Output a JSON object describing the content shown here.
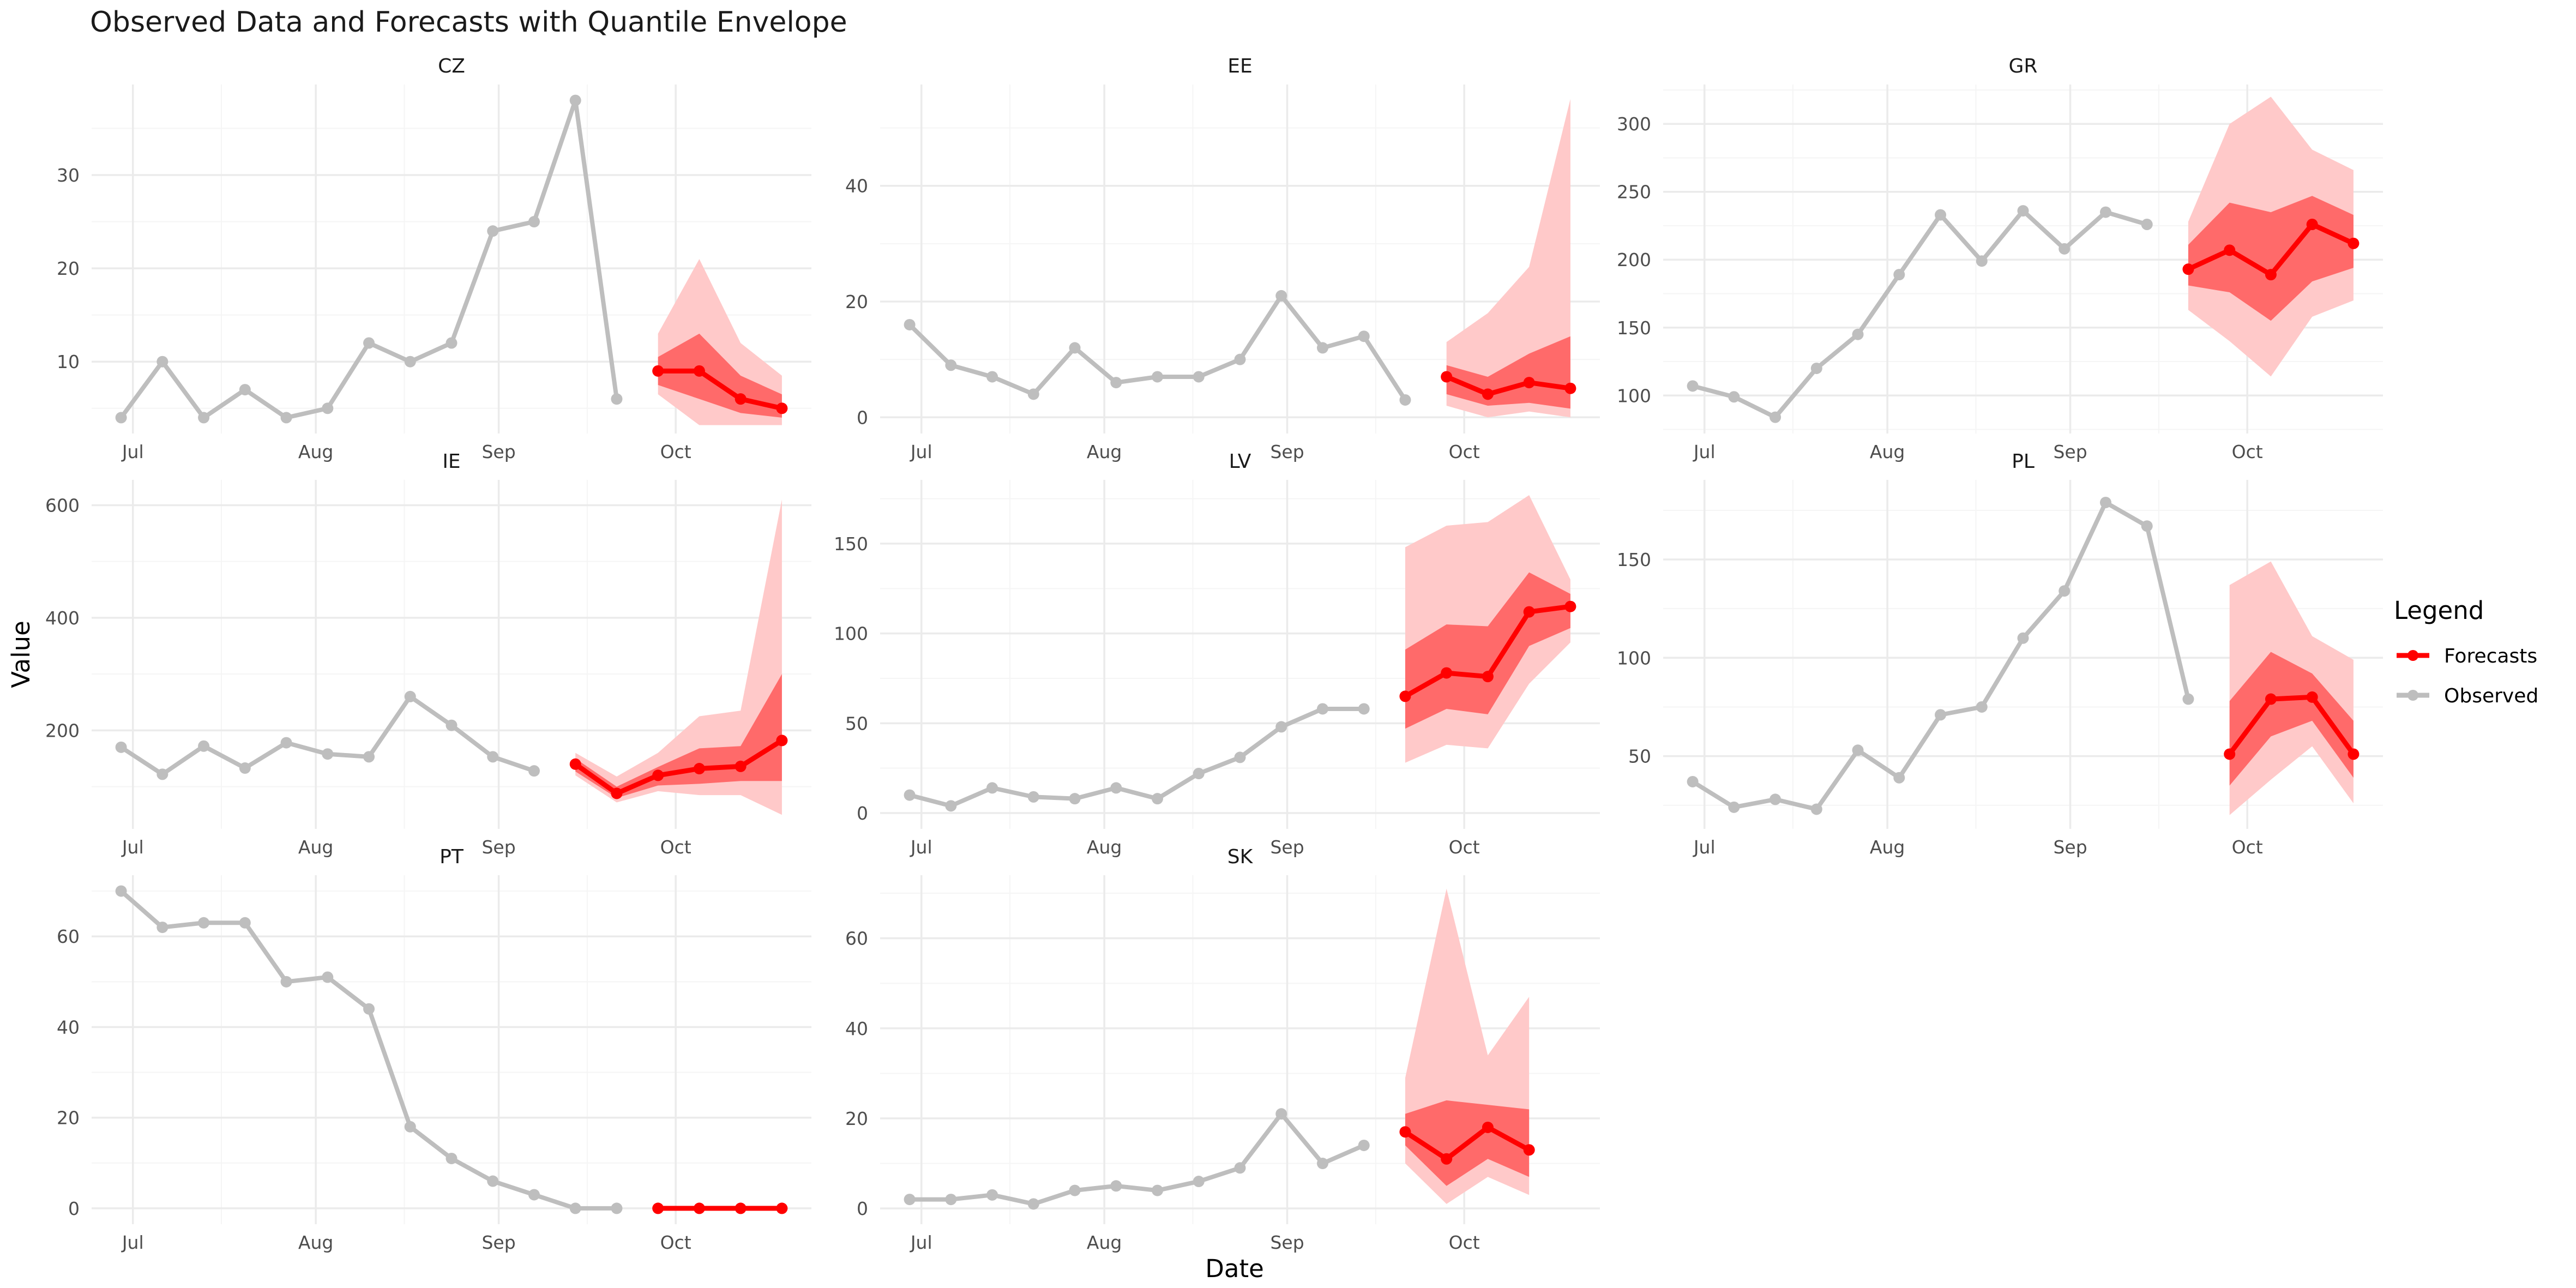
{
  "chart_data": {
    "type": "line",
    "title": "Observed Data and Forecasts with Quantile Envelope",
    "xlabel": "Date",
    "ylabel": "Value",
    "x_ticks": [
      "Jul",
      "Aug",
      "Sep",
      "Oct"
    ],
    "legend": {
      "title": "Legend",
      "placement": "right",
      "entries": [
        {
          "name": "Forecasts",
          "color": "#ff0000"
        },
        {
          "name": "Observed",
          "color": "#bebebe"
        }
      ]
    },
    "colors": {
      "observed": "#bebebe",
      "forecast": "#ff0000",
      "inner_band": "#ff6a6a",
      "outer_band": "#ffc9c9",
      "grid_major": "#ebebeb",
      "grid_minor": "#f5f5f5"
    },
    "grid": true,
    "panels": [
      {
        "name": "CZ",
        "y_ticks": [
          10,
          20,
          30
        ],
        "y_range": [
          2.3,
          39.7
        ],
        "observed": [
          {
            "x": "2024-06-29",
            "y": 4
          },
          {
            "x": "2024-07-06",
            "y": 10
          },
          {
            "x": "2024-07-13",
            "y": 4
          },
          {
            "x": "2024-07-20",
            "y": 7
          },
          {
            "x": "2024-07-27",
            "y": 4
          },
          {
            "x": "2024-08-03",
            "y": 5
          },
          {
            "x": "2024-08-10",
            "y": 12
          },
          {
            "x": "2024-08-17",
            "y": 10
          },
          {
            "x": "2024-08-24",
            "y": 12
          },
          {
            "x": "2024-08-31",
            "y": 24
          },
          {
            "x": "2024-09-07",
            "y": 25
          },
          {
            "x": "2024-09-14",
            "y": 38
          },
          {
            "x": "2024-09-21",
            "y": 6
          }
        ],
        "forecast": [
          {
            "x": "2024-09-28",
            "y": 9,
            "lo50": 7.5,
            "hi50": 10.5,
            "lo90": 6.5,
            "hi90": 13
          },
          {
            "x": "2024-10-05",
            "y": 9,
            "lo50": 6,
            "hi50": 13,
            "lo90": 3.2,
            "hi90": 21
          },
          {
            "x": "2024-10-12",
            "y": 6,
            "lo50": 4.5,
            "hi50": 8.5,
            "lo90": 3.2,
            "hi90": 12
          },
          {
            "x": "2024-10-19",
            "y": 5,
            "lo50": 4,
            "hi50": 6.5,
            "lo90": 3.2,
            "hi90": 8.5
          }
        ]
      },
      {
        "name": "EE",
        "y_ticks": [
          0,
          20,
          40
        ],
        "y_range": [
          -2.8,
          57.5
        ],
        "observed": [
          {
            "x": "2024-06-29",
            "y": 16
          },
          {
            "x": "2024-07-06",
            "y": 9
          },
          {
            "x": "2024-07-13",
            "y": 7
          },
          {
            "x": "2024-07-20",
            "y": 4
          },
          {
            "x": "2024-07-27",
            "y": 12
          },
          {
            "x": "2024-08-03",
            "y": 6
          },
          {
            "x": "2024-08-10",
            "y": 7
          },
          {
            "x": "2024-08-17",
            "y": 7
          },
          {
            "x": "2024-08-24",
            "y": 10
          },
          {
            "x": "2024-08-31",
            "y": 21
          },
          {
            "x": "2024-09-07",
            "y": 12
          },
          {
            "x": "2024-09-14",
            "y": 14
          },
          {
            "x": "2024-09-21",
            "y": 3
          }
        ],
        "forecast": [
          {
            "x": "2024-09-28",
            "y": 7,
            "lo50": 4,
            "hi50": 9,
            "lo90": 2,
            "hi90": 13
          },
          {
            "x": "2024-10-05",
            "y": 4,
            "lo50": 2,
            "hi50": 7,
            "lo90": 0,
            "hi90": 18
          },
          {
            "x": "2024-10-12",
            "y": 6,
            "lo50": 2.5,
            "hi50": 11,
            "lo90": 1,
            "hi90": 26
          },
          {
            "x": "2024-10-19",
            "y": 5,
            "lo50": 1.5,
            "hi50": 14,
            "lo90": 0,
            "hi90": 55
          }
        ]
      },
      {
        "name": "GR",
        "y_ticks": [
          100,
          150,
          200,
          250,
          300
        ],
        "y_range": [
          72,
          329
        ],
        "observed": [
          {
            "x": "2024-06-29",
            "y": 107
          },
          {
            "x": "2024-07-06",
            "y": 99
          },
          {
            "x": "2024-07-13",
            "y": 84
          },
          {
            "x": "2024-07-20",
            "y": 120
          },
          {
            "x": "2024-07-27",
            "y": 145
          },
          {
            "x": "2024-08-03",
            "y": 189
          },
          {
            "x": "2024-08-10",
            "y": 233
          },
          {
            "x": "2024-08-17",
            "y": 199
          },
          {
            "x": "2024-08-24",
            "y": 236
          },
          {
            "x": "2024-08-31",
            "y": 208
          },
          {
            "x": "2024-09-07",
            "y": 235
          },
          {
            "x": "2024-09-14",
            "y": 226
          }
        ],
        "forecast": [
          {
            "x": "2024-09-21",
            "y": 193,
            "lo50": 181,
            "hi50": 211,
            "lo90": 163,
            "hi90": 228
          },
          {
            "x": "2024-09-28",
            "y": 207,
            "lo50": 176,
            "hi50": 242,
            "lo90": 140,
            "hi90": 300
          },
          {
            "x": "2024-10-05",
            "y": 189,
            "lo50": 155,
            "hi50": 235,
            "lo90": 114,
            "hi90": 320
          },
          {
            "x": "2024-10-12",
            "y": 226,
            "lo50": 184,
            "hi50": 247,
            "lo90": 158,
            "hi90": 281
          },
          {
            "x": "2024-10-19",
            "y": 212,
            "lo50": 194,
            "hi50": 233,
            "lo90": 170,
            "hi90": 266
          }
        ]
      },
      {
        "name": "IE",
        "y_ticks": [
          200,
          400,
          600
        ],
        "y_range": [
          25,
          645
        ],
        "observed": [
          {
            "x": "2024-06-29",
            "y": 170
          },
          {
            "x": "2024-07-06",
            "y": 122
          },
          {
            "x": "2024-07-13",
            "y": 172
          },
          {
            "x": "2024-07-20",
            "y": 133
          },
          {
            "x": "2024-07-27",
            "y": 178
          },
          {
            "x": "2024-08-03",
            "y": 158
          },
          {
            "x": "2024-08-10",
            "y": 153
          },
          {
            "x": "2024-08-17",
            "y": 260
          },
          {
            "x": "2024-08-24",
            "y": 209
          },
          {
            "x": "2024-08-31",
            "y": 153
          },
          {
            "x": "2024-09-07",
            "y": 128
          }
        ],
        "forecast": [
          {
            "x": "2024-09-14",
            "y": 140,
            "lo50": 127,
            "hi50": 150,
            "lo90": 120,
            "hi90": 160
          },
          {
            "x": "2024-09-21",
            "y": 88,
            "lo50": 80,
            "hi50": 100,
            "lo90": 72,
            "hi90": 118
          },
          {
            "x": "2024-09-28",
            "y": 120,
            "lo50": 102,
            "hi50": 135,
            "lo90": 92,
            "hi90": 160
          },
          {
            "x": "2024-10-05",
            "y": 132,
            "lo50": 105,
            "hi50": 168,
            "lo90": 85,
            "hi90": 225
          },
          {
            "x": "2024-10-12",
            "y": 136,
            "lo50": 110,
            "hi50": 172,
            "lo90": 85,
            "hi90": 235
          },
          {
            "x": "2024-10-19",
            "y": 182,
            "lo50": 110,
            "hi50": 300,
            "lo90": 50,
            "hi90": 610
          }
        ]
      },
      {
        "name": "LV",
        "y_ticks": [
          0,
          50,
          100,
          150
        ],
        "y_range": [
          -8.8,
          185.5
        ],
        "observed": [
          {
            "x": "2024-06-29",
            "y": 10
          },
          {
            "x": "2024-07-06",
            "y": 4
          },
          {
            "x": "2024-07-13",
            "y": 14
          },
          {
            "x": "2024-07-20",
            "y": 9
          },
          {
            "x": "2024-07-27",
            "y": 8
          },
          {
            "x": "2024-08-03",
            "y": 14
          },
          {
            "x": "2024-08-10",
            "y": 8
          },
          {
            "x": "2024-08-17",
            "y": 22
          },
          {
            "x": "2024-08-24",
            "y": 31
          },
          {
            "x": "2024-08-31",
            "y": 48
          },
          {
            "x": "2024-09-07",
            "y": 58
          },
          {
            "x": "2024-09-14",
            "y": 58
          }
        ],
        "forecast": [
          {
            "x": "2024-09-21",
            "y": 65,
            "lo50": 47,
            "hi50": 91,
            "lo90": 28,
            "hi90": 148
          },
          {
            "x": "2024-09-28",
            "y": 78,
            "lo50": 58,
            "hi50": 105,
            "lo90": 38,
            "hi90": 160
          },
          {
            "x": "2024-10-05",
            "y": 76,
            "lo50": 55,
            "hi50": 104,
            "lo90": 36,
            "hi90": 162
          },
          {
            "x": "2024-10-12",
            "y": 112,
            "lo50": 93,
            "hi50": 134,
            "lo90": 72,
            "hi90": 177
          },
          {
            "x": "2024-10-19",
            "y": 115,
            "lo50": 103,
            "hi50": 122,
            "lo90": 95,
            "hi90": 130
          }
        ]
      },
      {
        "name": "PL",
        "y_ticks": [
          50,
          100,
          150
        ],
        "y_range": [
          13,
          190.5
        ],
        "observed": [
          {
            "x": "2024-06-29",
            "y": 37
          },
          {
            "x": "2024-07-06",
            "y": 24
          },
          {
            "x": "2024-07-13",
            "y": 28
          },
          {
            "x": "2024-07-20",
            "y": 23
          },
          {
            "x": "2024-07-27",
            "y": 53
          },
          {
            "x": "2024-08-03",
            "y": 39
          },
          {
            "x": "2024-08-10",
            "y": 71
          },
          {
            "x": "2024-08-17",
            "y": 75
          },
          {
            "x": "2024-08-24",
            "y": 110
          },
          {
            "x": "2024-08-31",
            "y": 134
          },
          {
            "x": "2024-09-07",
            "y": 179
          },
          {
            "x": "2024-09-14",
            "y": 167
          },
          {
            "x": "2024-09-21",
            "y": 79
          }
        ],
        "forecast": [
          {
            "x": "2024-09-28",
            "y": 51,
            "lo50": 35,
            "hi50": 78,
            "lo90": 20,
            "hi90": 137
          },
          {
            "x": "2024-10-05",
            "y": 79,
            "lo50": 60,
            "hi50": 103,
            "lo90": 38,
            "hi90": 149
          },
          {
            "x": "2024-10-12",
            "y": 80,
            "lo50": 68,
            "hi50": 92,
            "lo90": 55,
            "hi90": 111
          },
          {
            "x": "2024-10-19",
            "y": 51,
            "lo50": 39,
            "hi50": 68,
            "lo90": 26,
            "hi90": 99
          }
        ]
      },
      {
        "name": "PT",
        "y_ticks": [
          0,
          20,
          40,
          60
        ],
        "y_range": [
          -3.5,
          73.5
        ],
        "observed": [
          {
            "x": "2024-06-29",
            "y": 70
          },
          {
            "x": "2024-07-06",
            "y": 62
          },
          {
            "x": "2024-07-13",
            "y": 63
          },
          {
            "x": "2024-07-20",
            "y": 63
          },
          {
            "x": "2024-07-27",
            "y": 50
          },
          {
            "x": "2024-08-03",
            "y": 51
          },
          {
            "x": "2024-08-10",
            "y": 44
          },
          {
            "x": "2024-08-17",
            "y": 18
          },
          {
            "x": "2024-08-24",
            "y": 11
          },
          {
            "x": "2024-08-31",
            "y": 6
          },
          {
            "x": "2024-09-07",
            "y": 3
          },
          {
            "x": "2024-09-14",
            "y": 0
          },
          {
            "x": "2024-09-21",
            "y": 0
          }
        ],
        "forecast": [
          {
            "x": "2024-09-28",
            "y": 0,
            "lo50": 0,
            "hi50": 0,
            "lo90": 0,
            "hi90": 0
          },
          {
            "x": "2024-10-05",
            "y": 0,
            "lo50": 0,
            "hi50": 0,
            "lo90": 0,
            "hi90": 0
          },
          {
            "x": "2024-10-12",
            "y": 0,
            "lo50": 0,
            "hi50": 0,
            "lo90": 0,
            "hi90": 0
          },
          {
            "x": "2024-10-19",
            "y": 0,
            "lo50": 0,
            "hi50": 0,
            "lo90": 0,
            "hi90": 0
          }
        ]
      },
      {
        "name": "SK",
        "y_ticks": [
          0,
          20,
          40,
          60
        ],
        "y_range": [
          -3.5,
          74
        ],
        "observed": [
          {
            "x": "2024-06-29",
            "y": 2
          },
          {
            "x": "2024-07-06",
            "y": 2
          },
          {
            "x": "2024-07-13",
            "y": 3
          },
          {
            "x": "2024-07-20",
            "y": 1
          },
          {
            "x": "2024-07-27",
            "y": 4
          },
          {
            "x": "2024-08-03",
            "y": 5
          },
          {
            "x": "2024-08-10",
            "y": 4
          },
          {
            "x": "2024-08-17",
            "y": 6
          },
          {
            "x": "2024-08-24",
            "y": 9
          },
          {
            "x": "2024-08-31",
            "y": 21
          },
          {
            "x": "2024-09-07",
            "y": 10
          },
          {
            "x": "2024-09-14",
            "y": 14
          }
        ],
        "forecast": [
          {
            "x": "2024-09-21",
            "y": 17,
            "lo50": 14,
            "hi50": 21,
            "lo90": 10,
            "hi90": 29
          },
          {
            "x": "2024-09-28",
            "y": 11,
            "lo50": 5,
            "hi50": 24,
            "lo90": 1,
            "hi90": 71
          },
          {
            "x": "2024-10-05",
            "y": 18,
            "lo50": 11,
            "hi50": 23,
            "lo90": 7,
            "hi90": 34
          },
          {
            "x": "2024-10-12",
            "y": 13,
            "lo50": 7,
            "hi50": 22,
            "lo90": 3,
            "hi90": 47
          }
        ]
      }
    ]
  }
}
